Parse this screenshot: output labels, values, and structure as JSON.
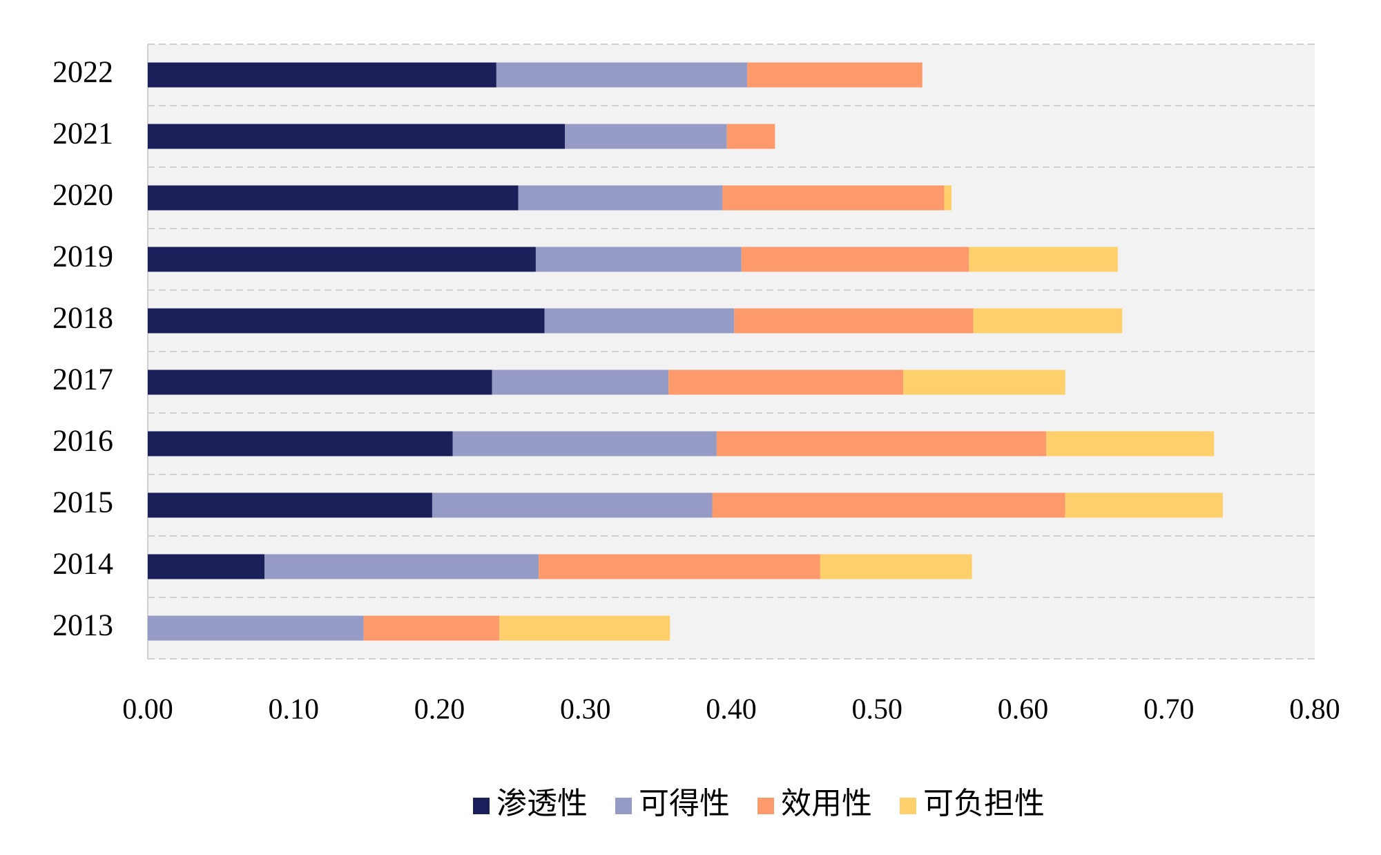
{
  "chart_data": {
    "type": "stacked-bar-horizontal",
    "categories": [
      "2022",
      "2021",
      "2020",
      "2019",
      "2018",
      "2017",
      "2016",
      "2015",
      "2014",
      "2013"
    ],
    "series": [
      {
        "name": "渗透性",
        "color": "#1b1f5a",
        "values": [
          0.239,
          0.286,
          0.254,
          0.266,
          0.272,
          0.236,
          0.209,
          0.195,
          0.08,
          0
        ]
      },
      {
        "name": "可得性",
        "color": "#959bc5",
        "values": [
          0.172,
          0.111,
          0.14,
          0.141,
          0.13,
          0.121,
          0.181,
          0.192,
          0.188,
          0.148
        ]
      },
      {
        "name": "效用性",
        "color": "#fd9a6b",
        "values": [
          0.12,
          0.033,
          0.152,
          0.156,
          0.164,
          0.161,
          0.226,
          0.242,
          0.193,
          0.093
        ]
      },
      {
        "name": "可负担性",
        "color": "#fdd06b",
        "values": [
          0,
          0,
          0.005,
          0.102,
          0.102,
          0.111,
          0.115,
          0.108,
          0.104,
          0.117
        ]
      }
    ],
    "xlim": [
      0,
      0.8
    ],
    "xticks": [
      {
        "value": 0,
        "label": "0.00"
      },
      {
        "value": 0.1,
        "label": "0.10"
      },
      {
        "value": 0.2,
        "label": "0.20"
      },
      {
        "value": 0.3,
        "label": "0.30"
      },
      {
        "value": 0.4,
        "label": "0.40"
      },
      {
        "value": 0.5,
        "label": "0.50"
      },
      {
        "value": 0.6,
        "label": "0.60"
      },
      {
        "value": 0.7,
        "label": "0.70"
      },
      {
        "value": 0.8,
        "label": "0.80"
      }
    ],
    "legend": "bottom"
  }
}
